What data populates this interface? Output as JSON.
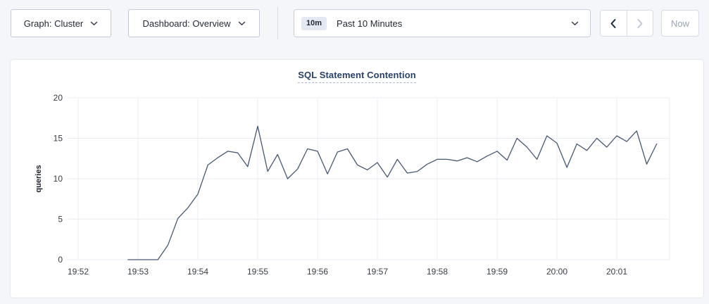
{
  "toolbar": {
    "graph_dropdown_label": "Graph: Cluster",
    "dashboard_dropdown_label": "Dashboard: Overview",
    "time_badge": "10m",
    "time_label": "Past 10 Minutes",
    "now_label": "Now"
  },
  "icons": {
    "chevron_down": "v",
    "chevron_left": "<",
    "chevron_right": ">"
  },
  "colors": {
    "page_bg": "#f4f6fa",
    "card_bg": "#ffffff",
    "line": "#475872",
    "grid": "#ebedf3",
    "title": "#2a4168",
    "disabled": "#9ba4b4"
  },
  "chart_data": {
    "type": "line",
    "title": "SQL Statement Contention",
    "xlabel": "",
    "ylabel": "queries",
    "ylim": [
      0,
      20
    ],
    "yticks": [
      0,
      5,
      10,
      15,
      20
    ],
    "xticks": [
      "19:52",
      "19:53",
      "19:54",
      "19:55",
      "19:56",
      "19:57",
      "19:58",
      "19:59",
      "20:00",
      "20:01"
    ],
    "grid": true,
    "legend": "none",
    "series": [
      {
        "name": "queries",
        "color": "#475872",
        "points": [
          [
            "19:52:50",
            0
          ],
          [
            "19:53:00",
            0
          ],
          [
            "19:53:10",
            0
          ],
          [
            "19:53:20",
            0
          ],
          [
            "19:53:30",
            1.8
          ],
          [
            "19:53:40",
            5.1
          ],
          [
            "19:53:50",
            6.4
          ],
          [
            "19:54:00",
            8.1
          ],
          [
            "19:54:10",
            11.7
          ],
          [
            "19:54:20",
            12.6
          ],
          [
            "19:54:30",
            13.4
          ],
          [
            "19:54:40",
            13.2
          ],
          [
            "19:54:50",
            11.5
          ],
          [
            "19:55:00",
            16.5
          ],
          [
            "19:55:10",
            10.9
          ],
          [
            "19:55:20",
            13.0
          ],
          [
            "19:55:30",
            10.0
          ],
          [
            "19:55:40",
            11.2
          ],
          [
            "19:55:50",
            13.7
          ],
          [
            "19:56:00",
            13.4
          ],
          [
            "19:56:10",
            10.6
          ],
          [
            "19:56:20",
            13.3
          ],
          [
            "19:56:30",
            13.7
          ],
          [
            "19:56:40",
            11.7
          ],
          [
            "19:56:50",
            11.1
          ],
          [
            "19:57:00",
            12.0
          ],
          [
            "19:57:10",
            10.2
          ],
          [
            "19:57:20",
            12.4
          ],
          [
            "19:57:30",
            10.7
          ],
          [
            "19:57:40",
            10.9
          ],
          [
            "19:57:50",
            11.8
          ],
          [
            "19:58:00",
            12.4
          ],
          [
            "19:58:10",
            12.4
          ],
          [
            "19:58:20",
            12.2
          ],
          [
            "19:58:30",
            12.6
          ],
          [
            "19:58:40",
            12.1
          ],
          [
            "19:58:50",
            12.8
          ],
          [
            "19:59:00",
            13.4
          ],
          [
            "19:59:10",
            12.3
          ],
          [
            "19:59:20",
            15.0
          ],
          [
            "19:59:30",
            13.9
          ],
          [
            "19:59:40",
            12.4
          ],
          [
            "19:59:50",
            15.3
          ],
          [
            "20:00:00",
            14.4
          ],
          [
            "20:00:10",
            11.4
          ],
          [
            "20:00:20",
            14.3
          ],
          [
            "20:00:30",
            13.5
          ],
          [
            "20:00:40",
            15.0
          ],
          [
            "20:00:50",
            13.9
          ],
          [
            "20:01:00",
            15.3
          ],
          [
            "20:01:10",
            14.6
          ],
          [
            "20:01:20",
            15.9
          ],
          [
            "20:01:30",
            11.8
          ],
          [
            "20:01:40",
            14.3
          ]
        ]
      }
    ]
  }
}
